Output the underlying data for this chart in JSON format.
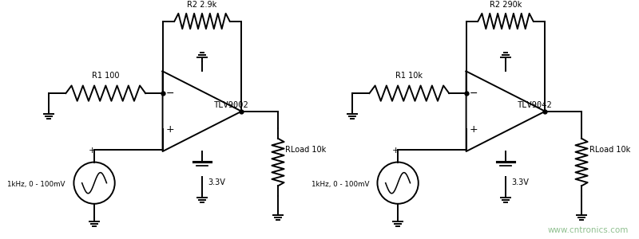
{
  "bg_color": "#ffffff",
  "line_color": "#000000",
  "text_color": "#000000",
  "watermark_color": "#90c090",
  "watermark": "www.cntronics.com",
  "circuits": [
    {
      "r1_label": "R1 100",
      "r2_label": "R2 2.9k",
      "opamp_label": "TLV9002",
      "sig_label": "1kHz, 0 - 100mV",
      "rload_label": "RLoad 10k",
      "vcc_label": "3.3V"
    },
    {
      "r1_label": "R1 10k",
      "r2_label": "R2 290k",
      "opamp_label": "TLV9042",
      "sig_label": "1kHz, 0 - 100mV",
      "rload_label": "RLoad 10k",
      "vcc_label": "3.3V"
    }
  ]
}
